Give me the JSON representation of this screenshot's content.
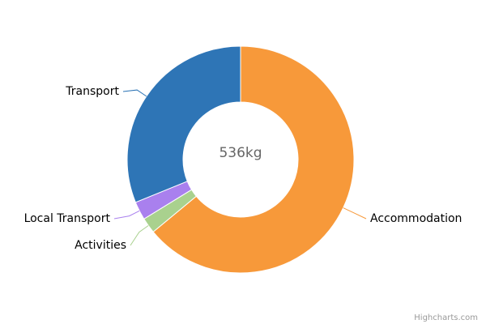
{
  "chart_data": {
    "type": "pie",
    "center_label": "536kg",
    "categories": [
      "Accommodation",
      "Activities",
      "Local Transport",
      "Transport"
    ],
    "values": [
      343,
      12,
      14,
      167
    ],
    "colors": [
      "#f7993a",
      "#a9d18e",
      "#a980ee",
      "#2e75b6"
    ],
    "credits": "Highcharts.com"
  }
}
